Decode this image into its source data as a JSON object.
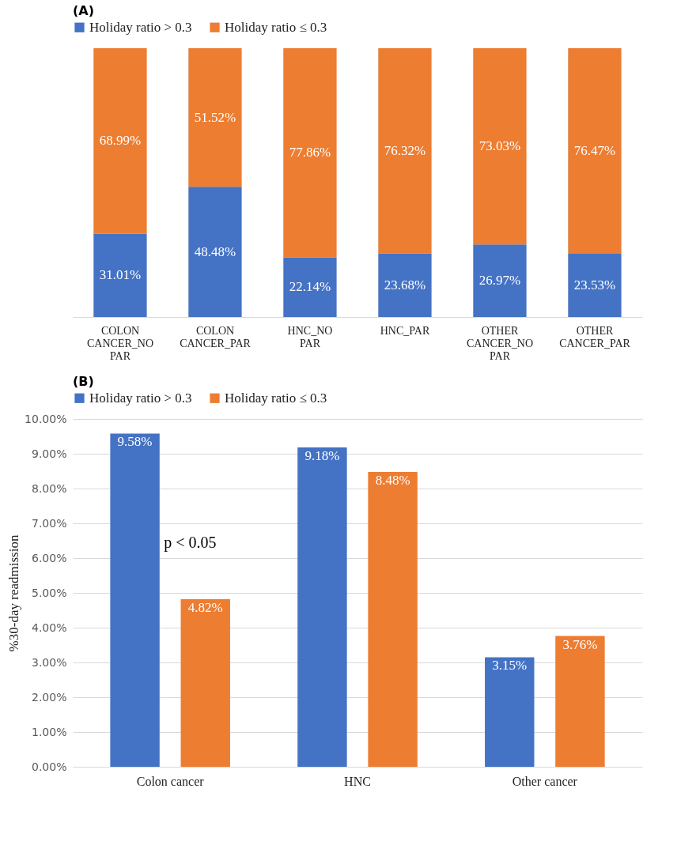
{
  "chart_data": [
    {
      "type": "bar",
      "title": "(A)",
      "stacked": true,
      "legend": "top",
      "grid": "x",
      "tick_labels": "x",
      "ylim": [
        0,
        100
      ],
      "categories": [
        "COLON CANCER_NO PAR",
        "COLON CANCER_PAR",
        "HNC_NO PAR",
        "HNC_PAR",
        "OTHER CANCER_NO PAR",
        "OTHER CANCER_PAR"
      ],
      "series": [
        {
          "name": "Holiday ratio > 0.3",
          "color": "#4472c4",
          "values": [
            31.01,
            48.48,
            22.14,
            23.68,
            26.97,
            23.53
          ],
          "value_labels": [
            "31.01%",
            "48.48%",
            "22.14%",
            "23.68%",
            "26.97%",
            "23.53%"
          ]
        },
        {
          "name": "Holiday ratio ≤ 0.3",
          "color": "#ed7d31",
          "values": [
            68.99,
            51.52,
            77.86,
            76.32,
            73.03,
            76.47
          ],
          "value_labels": [
            "68.99%",
            "51.52%",
            "77.86%",
            "76.32%",
            "73.03%",
            "76.47%"
          ]
        }
      ]
    },
    {
      "type": "bar",
      "title": "(B)",
      "legend": "top",
      "grid": "y",
      "ylabel": "%30-day readmission",
      "ylim": [
        0,
        10
      ],
      "yticks": [
        {
          "value": 0,
          "label": "0.00%"
        },
        {
          "value": 1,
          "label": "1.00%"
        },
        {
          "value": 2,
          "label": "2.00%"
        },
        {
          "value": 3,
          "label": "3.00%"
        },
        {
          "value": 4,
          "label": "4.00%"
        },
        {
          "value": 5,
          "label": "5.00%"
        },
        {
          "value": 6,
          "label": "6.00%"
        },
        {
          "value": 7,
          "label": "7.00%"
        },
        {
          "value": 8,
          "label": "8.00%"
        },
        {
          "value": 9,
          "label": "9.00%"
        },
        {
          "value": 10,
          "label": "10.00%"
        }
      ],
      "categories": [
        "Colon cancer",
        "HNC",
        "Other cancer"
      ],
      "annotations": [
        "p < 0.05"
      ],
      "series": [
        {
          "name": "Holiday ratio > 0.3",
          "color": "#4472c4",
          "values": [
            9.58,
            9.18,
            3.15
          ],
          "value_labels": [
            "9.58%",
            "9.18%",
            "3.15%"
          ]
        },
        {
          "name": "Holiday ratio ≤ 0.3",
          "color": "#ed7d31",
          "values": [
            4.82,
            8.48,
            3.76
          ],
          "value_labels": [
            "4.82%",
            "8.48%",
            "3.76%"
          ]
        }
      ]
    }
  ]
}
